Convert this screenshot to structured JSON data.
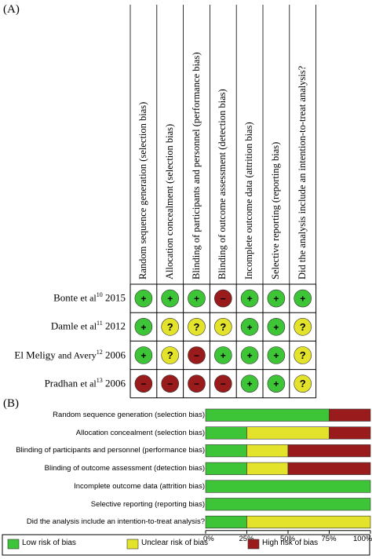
{
  "panel_a_label": "(A)",
  "panel_b_label": "(B)",
  "colors": {
    "low": "#3ec437",
    "unclear": "#e3e32c",
    "high": "#9a1b1b"
  },
  "chart_data": [
    {
      "type": "table",
      "domains": [
        "Random sequence generation (selection bias)",
        "Allocation concealment (selection bias)",
        "Blinding of participants and personnel (performance bias)",
        "Blinding of outcome assessment (detection bias)",
        "Incomplete outcome data (attrition bias)",
        "Selective reporting (reporting bias)",
        "Did the analysis include an intention-to-treat analysis?"
      ],
      "studies": [
        {
          "name": "Bonte",
          "al": "et al",
          "ref": "10",
          "year": "2015"
        },
        {
          "name": "Damle",
          "al": "et al",
          "ref": "11",
          "year": "2012"
        },
        {
          "name": "El Meligy",
          "al": "and Avery",
          "ref": "12",
          "year": "2006"
        },
        {
          "name": "Pradhan",
          "al": "et al",
          "ref": "13",
          "year": "2006"
        }
      ],
      "judgements": [
        [
          "low",
          "low",
          "low",
          "high",
          "low",
          "low",
          "low"
        ],
        [
          "low",
          "unclear",
          "unclear",
          "unclear",
          "low",
          "low",
          "unclear"
        ],
        [
          "low",
          "unclear",
          "high",
          "low",
          "low",
          "low",
          "unclear"
        ],
        [
          "high",
          "high",
          "high",
          "high",
          "low",
          "low",
          "unclear"
        ]
      ],
      "symbols": {
        "low": "+",
        "unclear": "?",
        "high": "−"
      }
    },
    {
      "type": "bar",
      "stacked": true,
      "orientation": "horizontal",
      "categories": [
        "Random sequence generation (selection bias)",
        "Allocation concealment (selection bias)",
        "Blinding of participants and personnel (performance bias)",
        "Blinding of outcome assessment (detection bias)",
        "Incomplete outcome data (attrition bias)",
        "Selective reporting (reporting bias)",
        "Did the analysis include an intention-to-treat analysis?"
      ],
      "series": [
        {
          "name": "Low risk of bias",
          "key": "low",
          "values": [
            75,
            25,
            25,
            25,
            100,
            100,
            25
          ]
        },
        {
          "name": "Unclear risk of bias",
          "key": "unclear",
          "values": [
            0,
            50,
            25,
            25,
            0,
            0,
            75
          ]
        },
        {
          "name": "High risk of bias",
          "key": "high",
          "values": [
            25,
            25,
            50,
            50,
            0,
            0,
            0
          ]
        }
      ],
      "xlim": [
        0,
        100
      ],
      "xticks": [
        "0%",
        "25%",
        "50%",
        "75%",
        "100%"
      ],
      "legend": "bottom"
    }
  ]
}
